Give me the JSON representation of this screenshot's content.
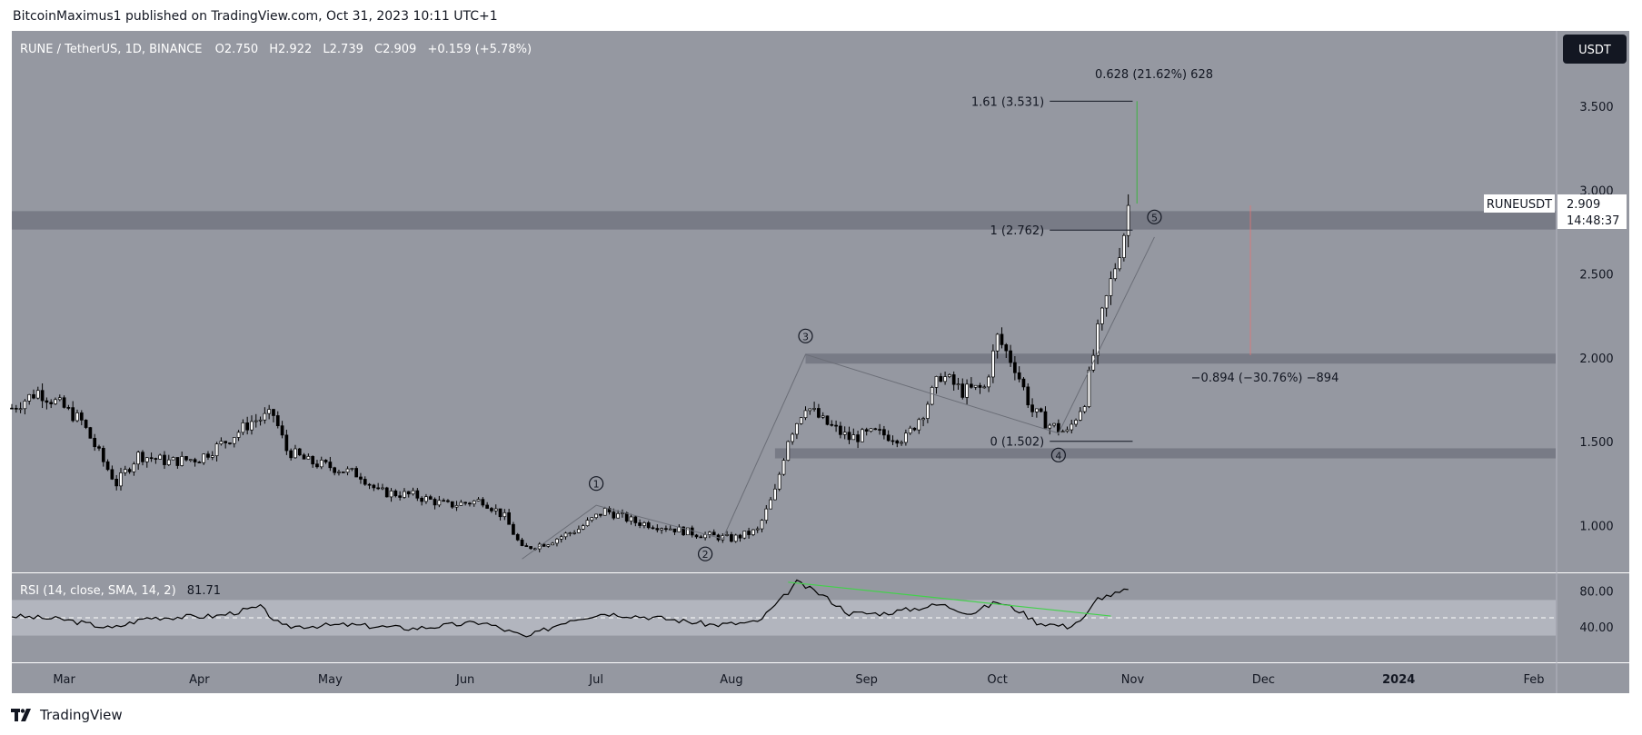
{
  "header": {
    "published": "BitcoinMaximus1 published on TradingView.com, Oct 31, 2023 10:11 UTC+1",
    "symbol": "RUNE / TetherUS, 1D, BINANCE",
    "ohlc": [
      {
        "k": "O",
        "v": "2.750"
      },
      {
        "k": "H",
        "v": "2.922"
      },
      {
        "k": "L",
        "v": "2.739"
      },
      {
        "k": "C",
        "v": "2.909"
      }
    ],
    "change": "+0.159 (+5.78%)"
  },
  "currency_button": "USDT",
  "price_tag": {
    "symbol": "RUNEUSDT",
    "price": "2.909",
    "countdown": "14:48:37"
  },
  "rsi": {
    "label": "RSI (14, close, SMA, 14, 2)",
    "value": "81.71",
    "ticks": [
      "80.00",
      "40.00"
    ],
    "band": [
      30,
      70
    ],
    "midline": 50,
    "range": [
      0,
      100
    ]
  },
  "annotations": {
    "fib_levels": [
      {
        "label": "1.61 (3.531)",
        "price": 3.531
      },
      {
        "label": "1 (2.762)",
        "price": 2.762
      },
      {
        "label": "0 (1.502)",
        "price": 1.502
      }
    ],
    "upper_measure": "0.628 (21.62%) 628",
    "lower_measure": "−0.894 (−30.76%) −894",
    "waves": [
      {
        "label": "1",
        "date": "2023-07-01",
        "price": 1.25
      },
      {
        "label": "2",
        "date": "2023-07-26",
        "price": 0.83
      },
      {
        "label": "3",
        "date": "2023-08-18",
        "price": 2.13
      },
      {
        "label": "4",
        "date": "2023-10-15",
        "price": 1.42
      },
      {
        "label": "5",
        "date": "2023-11-06",
        "price": 2.84
      }
    ],
    "zones": [
      {
        "from": 2.765,
        "to": 2.875
      },
      {
        "from": 1.965,
        "to": 2.025,
        "start": "2023-08-18"
      },
      {
        "from": 1.4,
        "to": 1.46,
        "start": "2023-08-11"
      }
    ]
  },
  "branding": {
    "footer": "TradingView"
  },
  "colors": {
    "panel_bg": "#9598a1",
    "zone": "#787b86",
    "rsi_band": "#b2b5be",
    "candle": "#000000",
    "trendline": "#43d14b",
    "measure_up": "#4caf50",
    "measure_down": "#e57373"
  },
  "chart_data": {
    "type": "candlestick",
    "price_axis": {
      "ticks": [
        "3.500",
        "3.000",
        "2.500",
        "2.000",
        "1.500",
        "1.000"
      ],
      "range": [
        0.72,
        3.95
      ]
    },
    "time_axis": {
      "labels": [
        "Mar",
        "Apr",
        "May",
        "Jun",
        "Jul",
        "Aug",
        "Sep",
        "Oct",
        "Nov",
        "Dec",
        "2024",
        "Feb"
      ],
      "range": [
        "2023-02-17",
        "2024-02-06"
      ]
    },
    "approx_close_series": [
      [
        "2023-02-17",
        1.7
      ],
      [
        "2023-02-23",
        1.8
      ],
      [
        "2023-02-28",
        1.72
      ],
      [
        "2023-03-05",
        1.62
      ],
      [
        "2023-03-10",
        1.38
      ],
      [
        "2023-03-13",
        1.25
      ],
      [
        "2023-03-18",
        1.42
      ],
      [
        "2023-03-25",
        1.38
      ],
      [
        "2023-04-01",
        1.4
      ],
      [
        "2023-04-08",
        1.52
      ],
      [
        "2023-04-13",
        1.62
      ],
      [
        "2023-04-18",
        1.66
      ],
      [
        "2023-04-21",
        1.45
      ],
      [
        "2023-04-26",
        1.38
      ],
      [
        "2023-05-01",
        1.35
      ],
      [
        "2023-05-08",
        1.3
      ],
      [
        "2023-05-12",
        1.2
      ],
      [
        "2023-05-20",
        1.18
      ],
      [
        "2023-05-28",
        1.12
      ],
      [
        "2023-06-05",
        1.15
      ],
      [
        "2023-06-10",
        1.05
      ],
      [
        "2023-06-14",
        0.86
      ],
      [
        "2023-06-20",
        0.9
      ],
      [
        "2023-06-27",
        0.98
      ],
      [
        "2023-07-03",
        1.09
      ],
      [
        "2023-07-10",
        1.02
      ],
      [
        "2023-07-17",
        0.99
      ],
      [
        "2023-07-24",
        0.95
      ],
      [
        "2023-08-01",
        0.92
      ],
      [
        "2023-08-07",
        0.97
      ],
      [
        "2023-08-11",
        1.2
      ],
      [
        "2023-08-14",
        1.52
      ],
      [
        "2023-08-18",
        1.72
      ],
      [
        "2023-08-22",
        1.62
      ],
      [
        "2023-08-28",
        1.52
      ],
      [
        "2023-09-03",
        1.55
      ],
      [
        "2023-09-10",
        1.52
      ],
      [
        "2023-09-14",
        1.68
      ],
      [
        "2023-09-18",
        1.9
      ],
      [
        "2023-09-23",
        1.8
      ],
      [
        "2023-09-28",
        1.82
      ],
      [
        "2023-10-01",
        2.12
      ],
      [
        "2023-10-05",
        1.95
      ],
      [
        "2023-10-09",
        1.68
      ],
      [
        "2023-10-13",
        1.6
      ],
      [
        "2023-10-17",
        1.55
      ],
      [
        "2023-10-21",
        1.75
      ],
      [
        "2023-10-24",
        2.15
      ],
      [
        "2023-10-27",
        2.45
      ],
      [
        "2023-10-29",
        2.65
      ],
      [
        "2023-10-30",
        2.75
      ],
      [
        "2023-10-31",
        2.909
      ]
    ],
    "rsi_series": [
      [
        "2023-02-17",
        52
      ],
      [
        "2023-03-01",
        48
      ],
      [
        "2023-03-12",
        38
      ],
      [
        "2023-03-20",
        50
      ],
      [
        "2023-04-05",
        52
      ],
      [
        "2023-04-15",
        62
      ],
      [
        "2023-04-20",
        40
      ],
      [
        "2023-05-05",
        42
      ],
      [
        "2023-05-20",
        38
      ],
      [
        "2023-06-05",
        45
      ],
      [
        "2023-06-15",
        28
      ],
      [
        "2023-06-25",
        48
      ],
      [
        "2023-07-03",
        55
      ],
      [
        "2023-07-15",
        50
      ],
      [
        "2023-07-28",
        42
      ],
      [
        "2023-08-07",
        45
      ],
      [
        "2023-08-12",
        68
      ],
      [
        "2023-08-16",
        90
      ],
      [
        "2023-08-22",
        75
      ],
      [
        "2023-08-28",
        55
      ],
      [
        "2023-09-05",
        55
      ],
      [
        "2023-09-18",
        65
      ],
      [
        "2023-09-25",
        55
      ],
      [
        "2023-10-01",
        68
      ],
      [
        "2023-10-06",
        58
      ],
      [
        "2023-10-10",
        45
      ],
      [
        "2023-10-17",
        40
      ],
      [
        "2023-10-21",
        50
      ],
      [
        "2023-10-24",
        72
      ],
      [
        "2023-10-29",
        78
      ],
      [
        "2023-10-31",
        81.71
      ]
    ]
  }
}
